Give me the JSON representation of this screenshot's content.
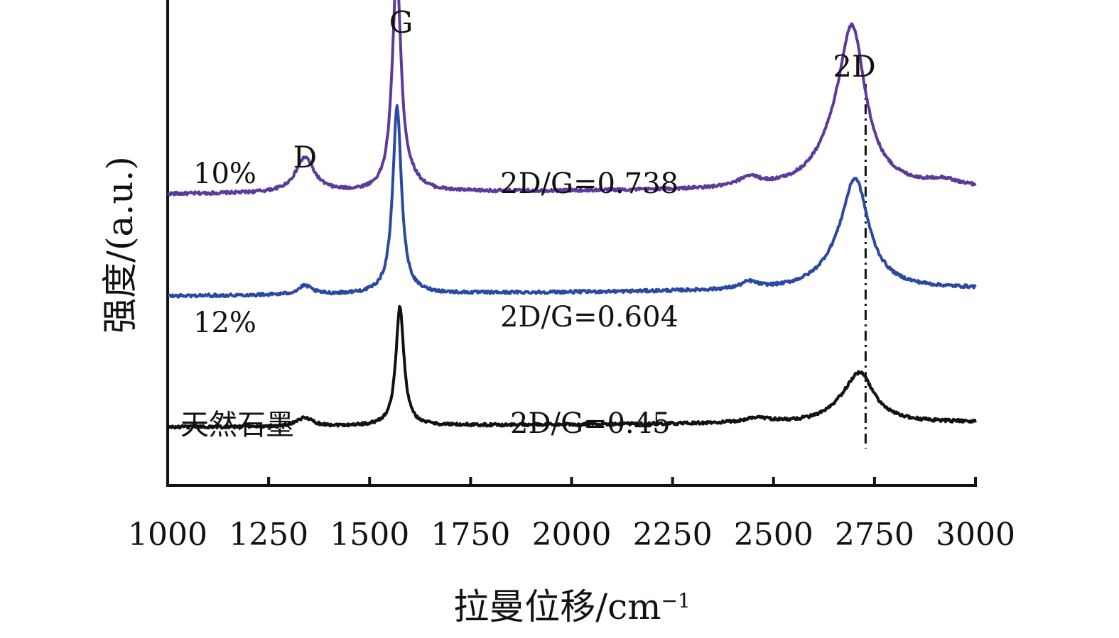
{
  "chart_data": {
    "type": "line",
    "title": "",
    "xlabel": "拉曼位移/cm",
    "xlabel_sup": "−1",
    "ylabel": "强度/(a.u.)",
    "xlim": [
      1000,
      3000
    ],
    "x_ticks": [
      1000,
      1250,
      1500,
      1750,
      2000,
      2250,
      2500,
      2750,
      3000
    ],
    "y_tick_labels": false,
    "grid": false,
    "legend": "none",
    "peak_labels": [
      {
        "text": "D",
        "x": 1340
      },
      {
        "text": "G",
        "x": 1578
      },
      {
        "text": "2D",
        "x": 2700
      }
    ],
    "reference_line": {
      "x": 2728,
      "style": "dash-dot"
    },
    "series": [
      {
        "name": "10%",
        "ratio_label": "2D/G=0.738",
        "color": "#5b3a9a",
        "baseline": 0.6,
        "tilt": 0.012,
        "peaks": [
          {
            "center": 1340,
            "height": 0.072,
            "width": 28
          },
          {
            "center": 1567,
            "height": 0.45,
            "width": 13
          },
          {
            "center": 1600,
            "height": 0.016,
            "width": 30
          },
          {
            "center": 2440,
            "height": 0.02,
            "width": 30
          },
          {
            "center": 2695,
            "height": 0.305,
            "width": 40
          },
          {
            "center": 2650,
            "height": 0.05,
            "width": 60
          },
          {
            "center": 2920,
            "height": 0.012,
            "width": 40
          }
        ]
      },
      {
        "name": "12%",
        "ratio_label": "2D/G=0.604",
        "color": "#2a49a0",
        "baseline": 0.39,
        "tilt": 0.015,
        "peaks": [
          {
            "center": 1340,
            "height": 0.018,
            "width": 20
          },
          {
            "center": 1568,
            "height": 0.385,
            "width": 13
          },
          {
            "center": 2440,
            "height": 0.014,
            "width": 25
          },
          {
            "center": 2703,
            "height": 0.21,
            "width": 40
          },
          {
            "center": 2660,
            "height": 0.03,
            "width": 60
          }
        ]
      },
      {
        "name": "天然石墨",
        "ratio_label": "2D/G=0.45",
        "color": "#111111",
        "baseline": 0.12,
        "tilt": 0.01,
        "peaks": [
          {
            "center": 1340,
            "height": 0.018,
            "width": 22
          },
          {
            "center": 1575,
            "height": 0.245,
            "width": 12
          },
          {
            "center": 2460,
            "height": 0.01,
            "width": 40
          },
          {
            "center": 2715,
            "height": 0.09,
            "width": 42
          },
          {
            "center": 2680,
            "height": 0.02,
            "width": 50
          }
        ]
      }
    ]
  }
}
